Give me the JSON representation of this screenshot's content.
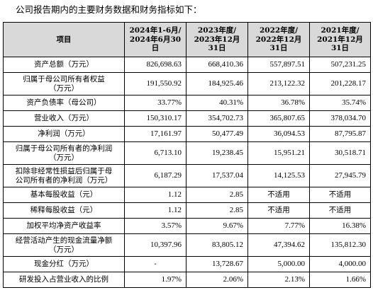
{
  "intro": "公司报告期内的主要财务数据和财务指标如下：",
  "header": {
    "item": "项目",
    "periods": [
      [
        "2024年1-6月/",
        "2024年6月30日"
      ],
      [
        "2023年度/",
        "2023年12月",
        "31日"
      ],
      [
        "2022年度/",
        "2022年12月",
        "31日"
      ],
      [
        "2021年度/",
        "2021年12月",
        "31日"
      ]
    ]
  },
  "rows": [
    {
      "label": [
        "资产总额（万元）"
      ],
      "values": [
        "826,698.63",
        "668,410.36",
        "557,897.51",
        "507,231.25"
      ]
    },
    {
      "label": [
        "归属于母公司所有者权益",
        "（万元）"
      ],
      "values": [
        "191,550.92",
        "184,925.46",
        "213,122.32",
        "201,228.17"
      ]
    },
    {
      "label": [
        "资产负债率（母公司）"
      ],
      "values": [
        "33.77%",
        "40.31%",
        "36.78%",
        "35.74%"
      ]
    },
    {
      "label": [
        "营业收入（万元）"
      ],
      "values": [
        "150,310.17",
        "354,702.73",
        "365,807.65",
        "378,034.70"
      ]
    },
    {
      "label": [
        "净利润（万元）"
      ],
      "values": [
        "17,161.97",
        "50,477.49",
        "36,094.53",
        "87,795.87"
      ]
    },
    {
      "label": [
        "归属于母公司所有者的净利润",
        "（万元）"
      ],
      "values": [
        "6,713.10",
        "19,238.45",
        "15,951.21",
        "30,518.71"
      ]
    },
    {
      "label": [
        "扣除非经常性损益后归属于母",
        "公司所有者的净利润（万元）"
      ],
      "values": [
        "6,187.29",
        "17,537.04",
        "14,125.53",
        "27,945.79"
      ]
    },
    {
      "label": [
        "基本每股收益（元）"
      ],
      "values": [
        "1.12",
        "2.85",
        "不适用",
        "不适用"
      ]
    },
    {
      "label": [
        "稀释每股收益（元）"
      ],
      "values": [
        "1.12",
        "2.85",
        "不适用",
        "不适用"
      ]
    },
    {
      "label": [
        "加权平均净资产收益率"
      ],
      "values": [
        "3.57%",
        "9.67%",
        "7.77%",
        "16.38%"
      ]
    },
    {
      "label": [
        "经营活动产生的现金流量净额",
        "（万元）"
      ],
      "values": [
        "10,397.96",
        "83,805.12",
        "47,394.62",
        "135,812.30"
      ]
    },
    {
      "label": [
        "现金分红（万元）"
      ],
      "values": [
        "-",
        "13,728.67",
        "5,000.00",
        "4,000.00"
      ]
    },
    {
      "label": [
        "研发投入占营业收入的比例"
      ],
      "values": [
        "1.97%",
        "2.06%",
        "2.13%",
        "1.66%"
      ]
    }
  ]
}
